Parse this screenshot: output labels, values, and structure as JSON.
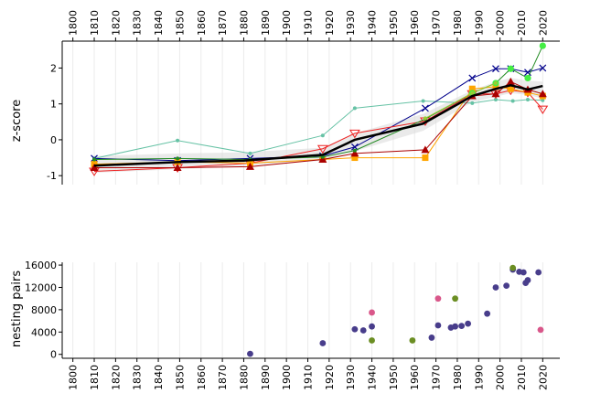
{
  "chart_data": [
    {
      "type": "line",
      "ylabel": "z-score",
      "xlim": [
        1795,
        2028
      ],
      "ylim": [
        -1.25,
        2.75
      ],
      "x_ticks": [
        1800,
        1810,
        1820,
        1830,
        1840,
        1850,
        1860,
        1870,
        1880,
        1890,
        1900,
        1910,
        1920,
        1930,
        1940,
        1950,
        1960,
        1970,
        1980,
        1990,
        2000,
        2010,
        2020
      ],
      "x_tick_position": "top",
      "y_ticks": [
        -1,
        0,
        1,
        2
      ],
      "grid": "vertical",
      "legend": "none",
      "confidence_band": {
        "x": [
          1810,
          1850,
          1880,
          1917,
          1932,
          1964,
          1987,
          1998,
          2005,
          2013,
          2020
        ],
        "lower": [
          -0.92,
          -0.82,
          -0.72,
          -0.58,
          -0.32,
          0.25,
          1.05,
          1.2,
          1.3,
          1.25,
          1.15
        ],
        "upper": [
          -0.45,
          -0.38,
          -0.35,
          -0.22,
          0.18,
          0.72,
          1.38,
          1.62,
          1.72,
          1.65,
          1.62
        ]
      },
      "series": [
        {
          "color": "#000000",
          "marker": "none",
          "width": 2.5,
          "x": [
            1810,
            1850,
            1880,
            1917,
            1932,
            1964,
            1987,
            1998,
            2005,
            2013,
            2020
          ],
          "y": [
            -0.72,
            -0.62,
            -0.58,
            -0.42,
            0.0,
            0.45,
            1.22,
            1.42,
            1.52,
            1.4,
            1.5
          ]
        },
        {
          "color": "#66c2a5",
          "marker": "dot",
          "width": 1,
          "x": [
            1810,
            1849,
            1883,
            1917,
            1932,
            1964,
            1987,
            1998,
            2006,
            2013,
            2020
          ],
          "y": [
            -0.52,
            -0.02,
            -0.38,
            0.12,
            0.88,
            1.08,
            1.02,
            1.12,
            1.08,
            1.12,
            1.1
          ]
        },
        {
          "color": "#00008b",
          "marker": "x",
          "width": 1,
          "x": [
            1810,
            1849,
            1883,
            1917,
            1932,
            1965,
            1987,
            1998,
            2005,
            2013,
            2020
          ],
          "y": [
            -0.52,
            -0.58,
            -0.52,
            -0.45,
            -0.2,
            0.88,
            1.72,
            1.98,
            1.98,
            1.88,
            2.0
          ]
        },
        {
          "color": "#ee2222",
          "marker": "triangle-down",
          "width": 1,
          "x": [
            1810,
            1849,
            1883,
            1917,
            1932,
            1965,
            1987,
            1998,
            2005,
            2013,
            2020
          ],
          "y": [
            -0.88,
            -0.78,
            -0.65,
            -0.25,
            0.18,
            0.52,
            1.28,
            1.28,
            1.38,
            1.32,
            0.85
          ]
        },
        {
          "color": "#ffa500",
          "marker": "square",
          "width": 1,
          "x": [
            1810,
            1849,
            1883,
            1917,
            1932,
            1965,
            1987,
            1998,
            2005,
            2013,
            2020
          ],
          "y": [
            -0.68,
            -0.62,
            -0.65,
            -0.55,
            -0.5,
            -0.5,
            1.42,
            1.48,
            1.42,
            1.32,
            1.22
          ]
        },
        {
          "color": "#aa0000",
          "marker": "triangle-up",
          "width": 1,
          "x": [
            1810,
            1849,
            1883,
            1917,
            1932,
            1965,
            1987,
            1998,
            2005,
            2013,
            2020
          ],
          "y": [
            -0.78,
            -0.78,
            -0.75,
            -0.55,
            -0.38,
            -0.28,
            1.22,
            1.28,
            1.62,
            1.4,
            1.28
          ]
        },
        {
          "color": "#228b22",
          "marker": "dot",
          "width": 1,
          "x": [
            1810,
            1849,
            1883,
            1917,
            1932,
            1965,
            1987,
            1998,
            2005,
            2013,
            2020
          ],
          "y": [
            -0.55,
            -0.52,
            -0.55,
            -0.48,
            -0.3,
            0.58,
            1.3,
            1.58,
            1.98,
            1.72,
            2.62
          ]
        },
        {
          "color": "#44ee44",
          "marker": "dot-big",
          "width": 1,
          "x": [
            1987,
            1998,
            2005,
            2013,
            2020
          ],
          "y": [
            1.3,
            1.58,
            1.98,
            1.72,
            2.62
          ]
        },
        {
          "color": "#99cc33",
          "marker": "dot",
          "width": 1,
          "x": [
            1965,
            1987,
            1998
          ],
          "y": [
            0.6,
            1.3,
            1.58
          ]
        }
      ]
    },
    {
      "type": "scatter",
      "ylabel": "nesting pairs",
      "xlim": [
        1795,
        2028
      ],
      "ylim": [
        -700,
        16500
      ],
      "x_ticks": [
        1800,
        1810,
        1820,
        1830,
        1840,
        1850,
        1860,
        1870,
        1880,
        1890,
        1900,
        1910,
        1920,
        1930,
        1940,
        1950,
        1960,
        1970,
        1980,
        1990,
        2000,
        2010,
        2020
      ],
      "x_tick_position": "bottom",
      "y_ticks": [
        0,
        4000,
        8000,
        12000,
        16000
      ],
      "grid": "vertical",
      "legend": "none",
      "series": [
        {
          "color": "#483d8b",
          "x": [
            1883,
            1917,
            1932,
            1936,
            1940,
            1968,
            1971,
            1977,
            1979,
            1982,
            1985,
            1994,
            1998,
            2003,
            2006,
            2009,
            2011,
            2012,
            2013,
            2018
          ],
          "y": [
            100,
            2000,
            4500,
            4300,
            5000,
            3000,
            5200,
            4800,
            5000,
            5100,
            5500,
            7300,
            12000,
            12300,
            15200,
            14800,
            14700,
            12800,
            13300,
            14700
          ]
        },
        {
          "color": "#d9578a",
          "x": [
            1940,
            1971,
            2019
          ],
          "y": [
            7500,
            10000,
            4400
          ]
        },
        {
          "color": "#6b8e23",
          "x": [
            1940,
            1959,
            1979,
            2006
          ],
          "y": [
            2500,
            2500,
            10000,
            15500
          ]
        }
      ]
    }
  ]
}
